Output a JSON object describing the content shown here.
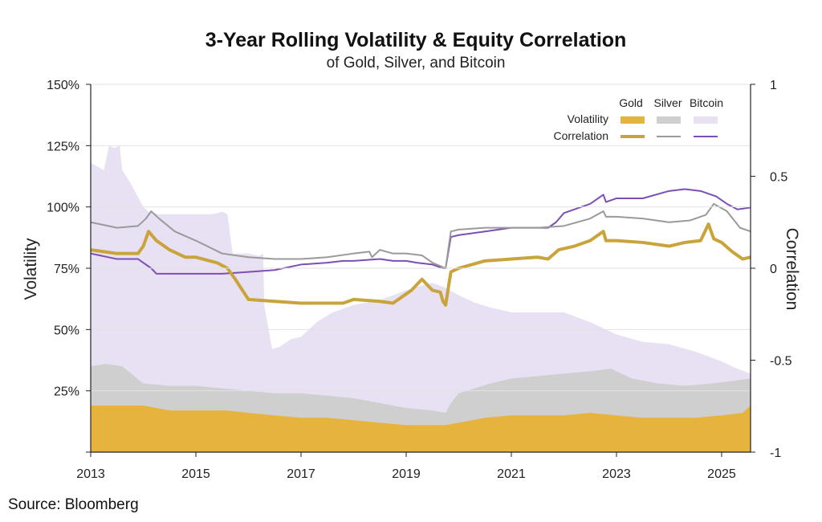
{
  "chart_data": {
    "type": "area+line",
    "title": "3-Year Rolling Volatility & Equity Correlation",
    "subtitle": "of Gold, Silver, and Bitcoin",
    "ylabel": "Volatility",
    "y2label": "Correlation",
    "xlim": [
      2013,
      2025.55
    ],
    "ylim": [
      0,
      150
    ],
    "y2lim": [
      -1,
      1
    ],
    "x_ticks": [
      2013,
      2015,
      2017,
      2019,
      2021,
      2023,
      2025
    ],
    "x_tick_labels": [
      "2013",
      "2015",
      "2017",
      "2019",
      "2021",
      "2023",
      "2025"
    ],
    "y_ticks": [
      0,
      25,
      50,
      75,
      100,
      125,
      150
    ],
    "y_tick_labels": [
      "",
      "25%",
      "50%",
      "75%",
      "100%",
      "125%",
      "150%"
    ],
    "y2_ticks": [
      -1,
      -0.5,
      0,
      0.5,
      1
    ],
    "y2_tick_labels": [
      "-1",
      "-0.5",
      "0",
      "0.5",
      "1"
    ],
    "legend": {
      "position": "top-right",
      "columns": [
        "Gold",
        "Silver",
        "Bitcoin"
      ],
      "rows": [
        "Volatility",
        "Correlation"
      ]
    },
    "colors": {
      "gold": "#e6b43c",
      "silver": "#cfcfcf",
      "bitcoin": "#e8e0f3",
      "gold_line": "#c9a43a",
      "silver_line": "#9a9a9a",
      "bitcoin_line": "#7c4fb5"
    },
    "area_series": [
      {
        "name": "Bitcoin",
        "key": "bitcoin",
        "x": [
          2013.0,
          2013.25,
          2013.35,
          2013.45,
          2013.55,
          2013.6,
          2013.75,
          2013.9,
          2014.0,
          2014.1,
          2014.3,
          2014.5,
          2014.7,
          2015.0,
          2015.3,
          2015.5,
          2015.6,
          2015.7,
          2016.0,
          2016.2,
          2016.28,
          2016.3,
          2016.45,
          2016.6,
          2016.8,
          2017.0,
          2017.3,
          2017.6,
          2018.0,
          2018.5,
          2019.0,
          2019.3,
          2019.5,
          2019.75,
          2020.0,
          2020.3,
          2020.6,
          2021.0,
          2021.5,
          2022.0,
          2022.5,
          2023.0,
          2023.5,
          2024.0,
          2024.5,
          2025.0,
          2025.3,
          2025.55
        ],
        "values": [
          118,
          115,
          125,
          124,
          125,
          115,
          110,
          104,
          100,
          98,
          97,
          97,
          97,
          97,
          97,
          98,
          97,
          81,
          81,
          80,
          81,
          60,
          42,
          43,
          46,
          47,
          53,
          57,
          60,
          62,
          66,
          68,
          69,
          67,
          64,
          61,
          59,
          57,
          57,
          57,
          53,
          48,
          45,
          44,
          41,
          37,
          34,
          32
        ]
      },
      {
        "name": "Silver",
        "key": "silver",
        "x": [
          2013.0,
          2013.3,
          2013.6,
          2014.0,
          2014.5,
          2015.0,
          2015.5,
          2016.0,
          2016.5,
          2017.0,
          2017.5,
          2018.0,
          2018.5,
          2019.0,
          2019.5,
          2019.75,
          2019.85,
          2020.0,
          2020.3,
          2020.6,
          2021.0,
          2021.5,
          2022.0,
          2022.5,
          2022.9,
          2023.3,
          2023.8,
          2024.3,
          2024.8,
          2025.2,
          2025.55
        ],
        "values": [
          35,
          36,
          35,
          28,
          27,
          27,
          26,
          25,
          24,
          24,
          23,
          22,
          20,
          18,
          17,
          16,
          20,
          24,
          26,
          28,
          30,
          31,
          32,
          33,
          34,
          30,
          28,
          27,
          28,
          29,
          30
        ]
      },
      {
        "name": "Gold",
        "key": "gold",
        "x": [
          2013.0,
          2013.5,
          2014.0,
          2014.5,
          2015.0,
          2015.6,
          2016.0,
          2016.5,
          2017.0,
          2017.5,
          2018.0,
          2018.5,
          2019.0,
          2019.5,
          2019.75,
          2020.0,
          2020.5,
          2021.0,
          2021.5,
          2022.0,
          2022.5,
          2023.0,
          2023.5,
          2024.0,
          2024.5,
          2025.0,
          2025.4,
          2025.55
        ],
        "values": [
          19,
          19,
          19,
          17,
          17,
          17,
          16,
          15,
          14,
          14,
          13,
          12,
          11,
          11,
          11,
          12,
          14,
          15,
          15,
          15,
          16,
          15,
          14,
          14,
          14,
          15,
          16,
          19
        ]
      }
    ],
    "line_series": [
      {
        "name": "Bitcoin",
        "key": "bitcoin_line",
        "width": 2,
        "x": [
          2013.0,
          2013.5,
          2013.9,
          2014.15,
          2014.25,
          2014.5,
          2015.0,
          2015.5,
          2016.0,
          2016.5,
          2017.0,
          2017.5,
          2017.8,
          2018.0,
          2018.5,
          2018.75,
          2019.0,
          2019.2,
          2019.5,
          2019.7,
          2019.75,
          2019.85,
          2020.0,
          2020.5,
          2021.0,
          2021.5,
          2021.7,
          2021.85,
          2022.0,
          2022.5,
          2022.75,
          2022.8,
          2023.0,
          2023.5,
          2024.0,
          2024.3,
          2024.6,
          2024.9,
          2025.1,
          2025.3,
          2025.55
        ],
        "values": [
          0.08,
          0.05,
          0.05,
          0.0,
          -0.03,
          -0.03,
          -0.03,
          -0.03,
          -0.02,
          -0.01,
          0.02,
          0.03,
          0.04,
          0.04,
          0.05,
          0.04,
          0.04,
          0.03,
          0.02,
          0.0,
          0.0,
          0.17,
          0.18,
          0.2,
          0.22,
          0.22,
          0.22,
          0.25,
          0.3,
          0.35,
          0.4,
          0.36,
          0.38,
          0.38,
          0.42,
          0.43,
          0.42,
          0.39,
          0.35,
          0.32,
          0.33
        ]
      },
      {
        "name": "Silver",
        "key": "silver_line",
        "width": 2,
        "x": [
          2013.0,
          2013.5,
          2013.9,
          2014.05,
          2014.15,
          2014.3,
          2014.6,
          2015.0,
          2015.5,
          2016.0,
          2016.5,
          2017.0,
          2017.5,
          2018.0,
          2018.3,
          2018.35,
          2018.5,
          2018.75,
          2019.0,
          2019.3,
          2019.5,
          2019.75,
          2019.85,
          2020.0,
          2020.5,
          2021.0,
          2021.5,
          2022.0,
          2022.5,
          2022.75,
          2022.8,
          2023.0,
          2023.5,
          2024.0,
          2024.4,
          2024.7,
          2024.85,
          2025.1,
          2025.35,
          2025.55
        ],
        "values": [
          0.25,
          0.22,
          0.23,
          0.27,
          0.31,
          0.27,
          0.2,
          0.15,
          0.08,
          0.06,
          0.05,
          0.05,
          0.06,
          0.08,
          0.09,
          0.06,
          0.1,
          0.08,
          0.08,
          0.07,
          0.03,
          0.0,
          0.2,
          0.21,
          0.22,
          0.22,
          0.22,
          0.23,
          0.27,
          0.31,
          0.28,
          0.28,
          0.27,
          0.25,
          0.26,
          0.29,
          0.35,
          0.31,
          0.22,
          0.2
        ]
      },
      {
        "name": "Gold",
        "key": "gold_line",
        "width": 4,
        "x": [
          2013.0,
          2013.5,
          2013.9,
          2014.0,
          2014.1,
          2014.25,
          2014.5,
          2014.8,
          2015.0,
          2015.4,
          2015.6,
          2015.75,
          2016.0,
          2016.5,
          2017.0,
          2017.5,
          2017.8,
          2018.0,
          2018.5,
          2018.75,
          2019.0,
          2019.1,
          2019.3,
          2019.5,
          2019.65,
          2019.7,
          2019.75,
          2019.85,
          2020.0,
          2020.5,
          2021.0,
          2021.5,
          2021.7,
          2021.9,
          2022.2,
          2022.5,
          2022.75,
          2022.8,
          2023.0,
          2023.5,
          2024.0,
          2024.3,
          2024.6,
          2024.75,
          2024.85,
          2025.0,
          2025.2,
          2025.4,
          2025.55
        ],
        "values": [
          0.1,
          0.08,
          0.08,
          0.12,
          0.2,
          0.15,
          0.1,
          0.06,
          0.06,
          0.03,
          0.0,
          -0.06,
          -0.17,
          -0.18,
          -0.19,
          -0.19,
          -0.19,
          -0.17,
          -0.18,
          -0.19,
          -0.14,
          -0.12,
          -0.06,
          -0.12,
          -0.13,
          -0.18,
          -0.2,
          -0.02,
          0.0,
          0.04,
          0.05,
          0.06,
          0.05,
          0.1,
          0.12,
          0.15,
          0.2,
          0.15,
          0.15,
          0.14,
          0.12,
          0.14,
          0.15,
          0.24,
          0.16,
          0.14,
          0.09,
          0.05,
          0.06
        ]
      }
    ]
  },
  "source": "Source: Bloomberg"
}
